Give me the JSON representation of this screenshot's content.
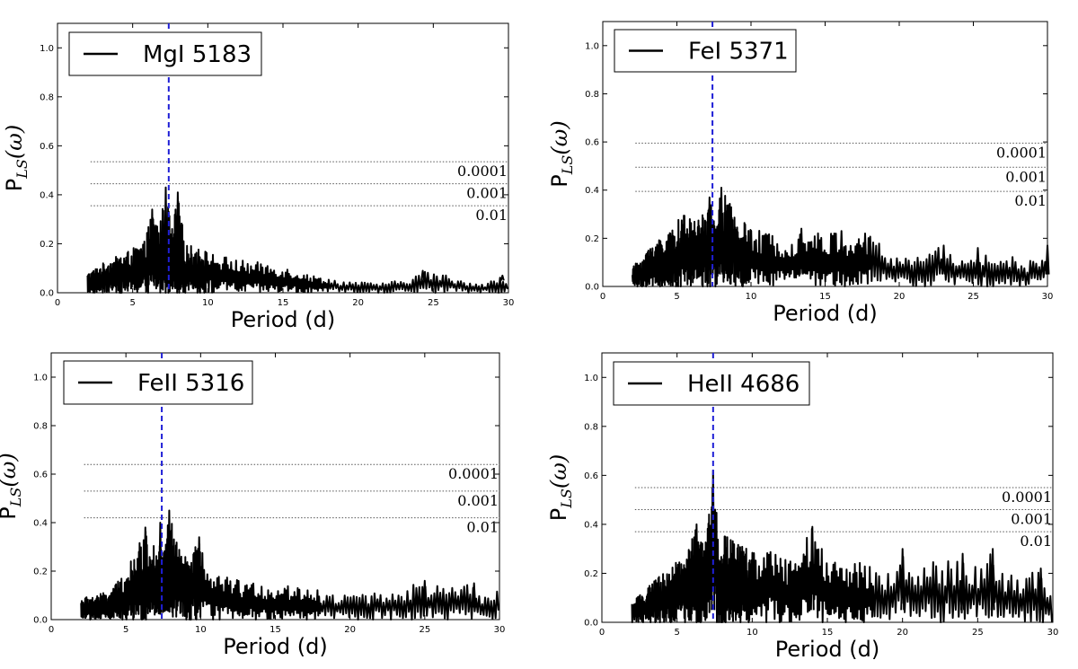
{
  "chart_data": [
    {
      "type": "line",
      "legend": "MgI 5183",
      "legend_placement": "top-left",
      "xlabel": "Period (d)",
      "ylabel_main": "P",
      "ylabel_sub": "LS",
      "ylabel_arg": "(ω)",
      "xlim": [
        0,
        30
      ],
      "ylim": [
        0,
        1.1
      ],
      "xticks": [
        "0",
        "5",
        "10",
        "15",
        "20",
        "25",
        "30"
      ],
      "yticks": [
        "0.0",
        "0.2",
        "0.4",
        "0.6",
        "0.8",
        "1.0"
      ],
      "vline_period": 7.4,
      "thresholds": [
        {
          "label": "0.0001",
          "value": 0.535
        },
        {
          "label": "0.001",
          "value": 0.445
        },
        {
          "label": "0.01",
          "value": 0.355
        }
      ],
      "envelope": [
        [
          2,
          0.08
        ],
        [
          3,
          0.12
        ],
        [
          4,
          0.15
        ],
        [
          5,
          0.18
        ],
        [
          5.8,
          0.21
        ],
        [
          6.3,
          0.34
        ],
        [
          6.8,
          0.28
        ],
        [
          7.2,
          0.42
        ],
        [
          7.6,
          0.26
        ],
        [
          8.0,
          0.4
        ],
        [
          8.5,
          0.2
        ],
        [
          9.5,
          0.18
        ],
        [
          11,
          0.15
        ],
        [
          12.5,
          0.13
        ],
        [
          14,
          0.12
        ],
        [
          15.5,
          0.1
        ],
        [
          17,
          0.07
        ],
        [
          19,
          0.05
        ],
        [
          21,
          0.04
        ],
        [
          23,
          0.05
        ],
        [
          24.3,
          0.09
        ],
        [
          25.5,
          0.08
        ],
        [
          27,
          0.05
        ],
        [
          28.5,
          0.04
        ],
        [
          29.5,
          0.07
        ],
        [
          30,
          0.04
        ]
      ],
      "peaks": [
        [
          6.3,
          0.34
        ],
        [
          7.2,
          0.43
        ],
        [
          8.0,
          0.41
        ],
        [
          24.3,
          0.09
        ],
        [
          29.6,
          0.07
        ]
      ]
    },
    {
      "type": "line",
      "legend": "FeI 5371",
      "legend_placement": "top-left",
      "xlabel": "Period (d)",
      "ylabel_main": "P",
      "ylabel_sub": "LS",
      "ylabel_arg": "(ω)",
      "xlim": [
        0,
        30
      ],
      "ylim": [
        0,
        1.1
      ],
      "xticks": [
        "0",
        "5",
        "10",
        "15",
        "20",
        "25",
        "30"
      ],
      "yticks": [
        "0.0",
        "0.2",
        "0.4",
        "0.6",
        "0.8",
        "1.0"
      ],
      "vline_period": 7.4,
      "thresholds": [
        {
          "label": "0.0001",
          "value": 0.595
        },
        {
          "label": "0.001",
          "value": 0.495
        },
        {
          "label": "0.01",
          "value": 0.395
        }
      ],
      "envelope": [
        [
          2,
          0.08
        ],
        [
          3,
          0.15
        ],
        [
          3.5,
          0.2
        ],
        [
          4.5,
          0.22
        ],
        [
          5.3,
          0.3
        ],
        [
          6,
          0.28
        ],
        [
          6.8,
          0.3
        ],
        [
          7.2,
          0.37
        ],
        [
          7.6,
          0.28
        ],
        [
          8.0,
          0.41
        ],
        [
          9,
          0.3
        ],
        [
          10,
          0.24
        ],
        [
          11.5,
          0.22
        ],
        [
          12.5,
          0.21
        ],
        [
          13.5,
          0.24
        ],
        [
          15,
          0.22
        ],
        [
          16,
          0.23
        ],
        [
          17,
          0.2
        ],
        [
          18,
          0.22
        ],
        [
          19.5,
          0.14
        ],
        [
          21,
          0.12
        ],
        [
          22,
          0.16
        ],
        [
          23,
          0.18
        ],
        [
          24,
          0.12
        ],
        [
          25.3,
          0.16
        ],
        [
          26.5,
          0.1
        ],
        [
          27.5,
          0.13
        ],
        [
          28.5,
          0.09
        ],
        [
          30,
          0.17
        ]
      ],
      "peaks": [
        [
          7.2,
          0.37
        ],
        [
          8.0,
          0.41
        ],
        [
          13.4,
          0.24
        ],
        [
          16.1,
          0.23
        ],
        [
          17.7,
          0.22
        ],
        [
          23.0,
          0.17
        ],
        [
          25.3,
          0.16
        ],
        [
          30,
          0.17
        ]
      ]
    },
    {
      "type": "line",
      "legend": "FeII 5316",
      "legend_placement": "top-left",
      "xlabel": "Period (d)",
      "ylabel_main": "P",
      "ylabel_sub": "LS",
      "ylabel_arg": "(ω)",
      "xlim": [
        0,
        30
      ],
      "ylim": [
        0,
        1.1
      ],
      "xticks": [
        "0",
        "5",
        "10",
        "15",
        "20",
        "25",
        "30"
      ],
      "yticks": [
        "0.0",
        "0.2",
        "0.4",
        "0.6",
        "0.8",
        "1.0"
      ],
      "vline_period": 7.4,
      "thresholds": [
        {
          "label": "0.0001",
          "value": 0.64
        },
        {
          "label": "0.001",
          "value": 0.53
        },
        {
          "label": "0.01",
          "value": 0.42
        }
      ],
      "envelope": [
        [
          2,
          0.09
        ],
        [
          3,
          0.1
        ],
        [
          4,
          0.12
        ],
        [
          5,
          0.2
        ],
        [
          5.8,
          0.3
        ],
        [
          6.3,
          0.37
        ],
        [
          6.8,
          0.32
        ],
        [
          7.3,
          0.38
        ],
        [
          7.6,
          0.3
        ],
        [
          7.9,
          0.45
        ],
        [
          8.5,
          0.3
        ],
        [
          9.3,
          0.24
        ],
        [
          9.8,
          0.34
        ],
        [
          10.5,
          0.2
        ],
        [
          12,
          0.17
        ],
        [
          13.5,
          0.15
        ],
        [
          15,
          0.14
        ],
        [
          16.5,
          0.14
        ],
        [
          18,
          0.12
        ],
        [
          19.5,
          0.11
        ],
        [
          21,
          0.11
        ],
        [
          22.5,
          0.12
        ],
        [
          24,
          0.14
        ],
        [
          25,
          0.16
        ],
        [
          26.5,
          0.13
        ],
        [
          28.2,
          0.15
        ],
        [
          29,
          0.1
        ],
        [
          30,
          0.12
        ]
      ],
      "peaks": [
        [
          6.3,
          0.38
        ],
        [
          7.3,
          0.4
        ],
        [
          7.9,
          0.45
        ],
        [
          9.9,
          0.34
        ],
        [
          25.0,
          0.16
        ],
        [
          28.3,
          0.15
        ]
      ]
    },
    {
      "type": "line",
      "legend": "HeII 4686",
      "legend_placement": "top-left",
      "xlabel": "Period (d)",
      "ylabel_main": "P",
      "ylabel_sub": "LS",
      "ylabel_arg": "(ω)",
      "xlim": [
        0,
        30
      ],
      "ylim": [
        0,
        1.1
      ],
      "xticks": [
        "0",
        "5",
        "10",
        "15",
        "20",
        "25",
        "30"
      ],
      "yticks": [
        "0.0",
        "0.2",
        "0.4",
        "0.6",
        "0.8",
        "1.0"
      ],
      "vline_period": 7.4,
      "thresholds": [
        {
          "label": "0.0001",
          "value": 0.55
        },
        {
          "label": "0.001",
          "value": 0.46
        },
        {
          "label": "0.01",
          "value": 0.37
        }
      ],
      "envelope": [
        [
          2,
          0.08
        ],
        [
          3,
          0.14
        ],
        [
          4,
          0.2
        ],
        [
          5,
          0.25
        ],
        [
          5.8,
          0.3
        ],
        [
          6.3,
          0.4
        ],
        [
          6.8,
          0.3
        ],
        [
          7.4,
          0.62
        ],
        [
          7.8,
          0.33
        ],
        [
          8.3,
          0.36
        ],
        [
          9,
          0.33
        ],
        [
          10,
          0.3
        ],
        [
          11,
          0.32
        ],
        [
          12,
          0.26
        ],
        [
          13,
          0.28
        ],
        [
          14,
          0.39
        ],
        [
          15,
          0.25
        ],
        [
          16,
          0.24
        ],
        [
          17,
          0.25
        ],
        [
          18,
          0.24
        ],
        [
          19,
          0.22
        ],
        [
          20,
          0.3
        ],
        [
          21,
          0.2
        ],
        [
          22,
          0.27
        ],
        [
          23,
          0.25
        ],
        [
          24,
          0.28
        ],
        [
          25,
          0.22
        ],
        [
          26,
          0.3
        ],
        [
          27,
          0.2
        ],
        [
          28,
          0.18
        ],
        [
          29,
          0.22
        ],
        [
          30,
          0.1
        ]
      ],
      "peaks": [
        [
          6.3,
          0.4
        ],
        [
          7.4,
          0.62
        ],
        [
          14.0,
          0.39
        ],
        [
          20.0,
          0.3
        ],
        [
          24.0,
          0.28
        ],
        [
          26.0,
          0.3
        ],
        [
          29.2,
          0.22
        ]
      ]
    }
  ]
}
